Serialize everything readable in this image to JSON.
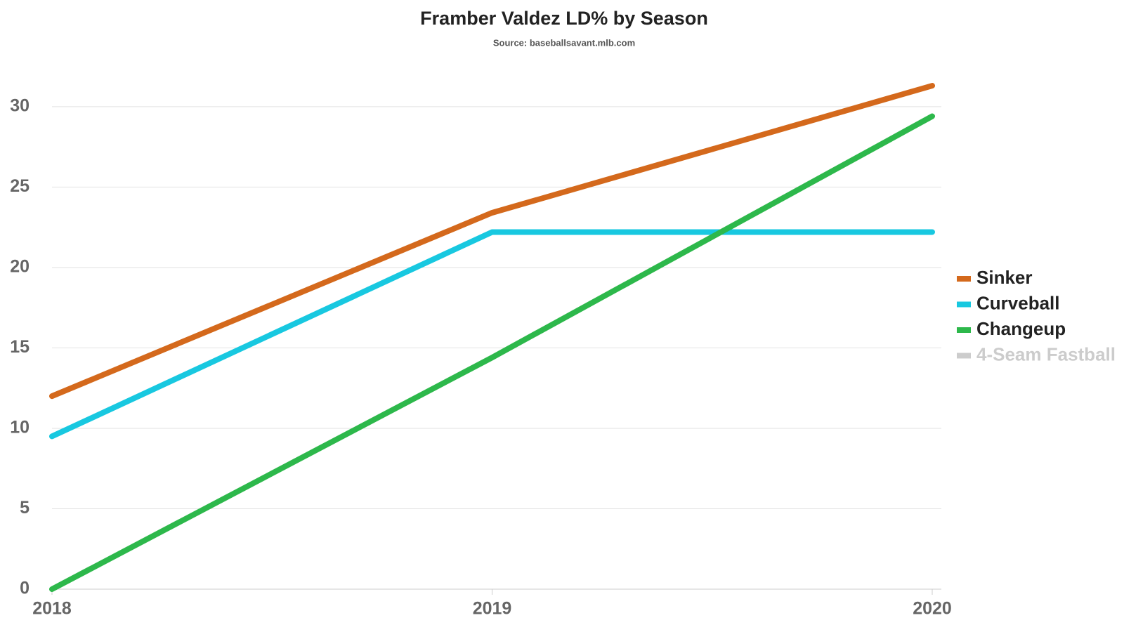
{
  "chart_data": {
    "type": "line",
    "title": "Framber Valdez LD% by Season",
    "subtitle": "Source: baseballsavant.mlb.com",
    "categories": [
      "2018",
      "2019",
      "2020"
    ],
    "series": [
      {
        "name": "Sinker",
        "color": "#d4691c",
        "values": [
          12.0,
          23.4,
          31.3
        ]
      },
      {
        "name": "Curveball",
        "color": "#18c8e0",
        "values": [
          9.5,
          22.2,
          22.2
        ]
      },
      {
        "name": "Changeup",
        "color": "#2db84b",
        "values": [
          0,
          14.4,
          29.4
        ]
      },
      {
        "name": "4-Seam Fastball",
        "color": "#cccccc",
        "values": [
          null,
          null,
          null
        ]
      }
    ],
    "ylim": [
      0,
      32
    ],
    "yticks": [
      0,
      5,
      10,
      15,
      20,
      25,
      30
    ],
    "grid": true,
    "legend": "right"
  }
}
